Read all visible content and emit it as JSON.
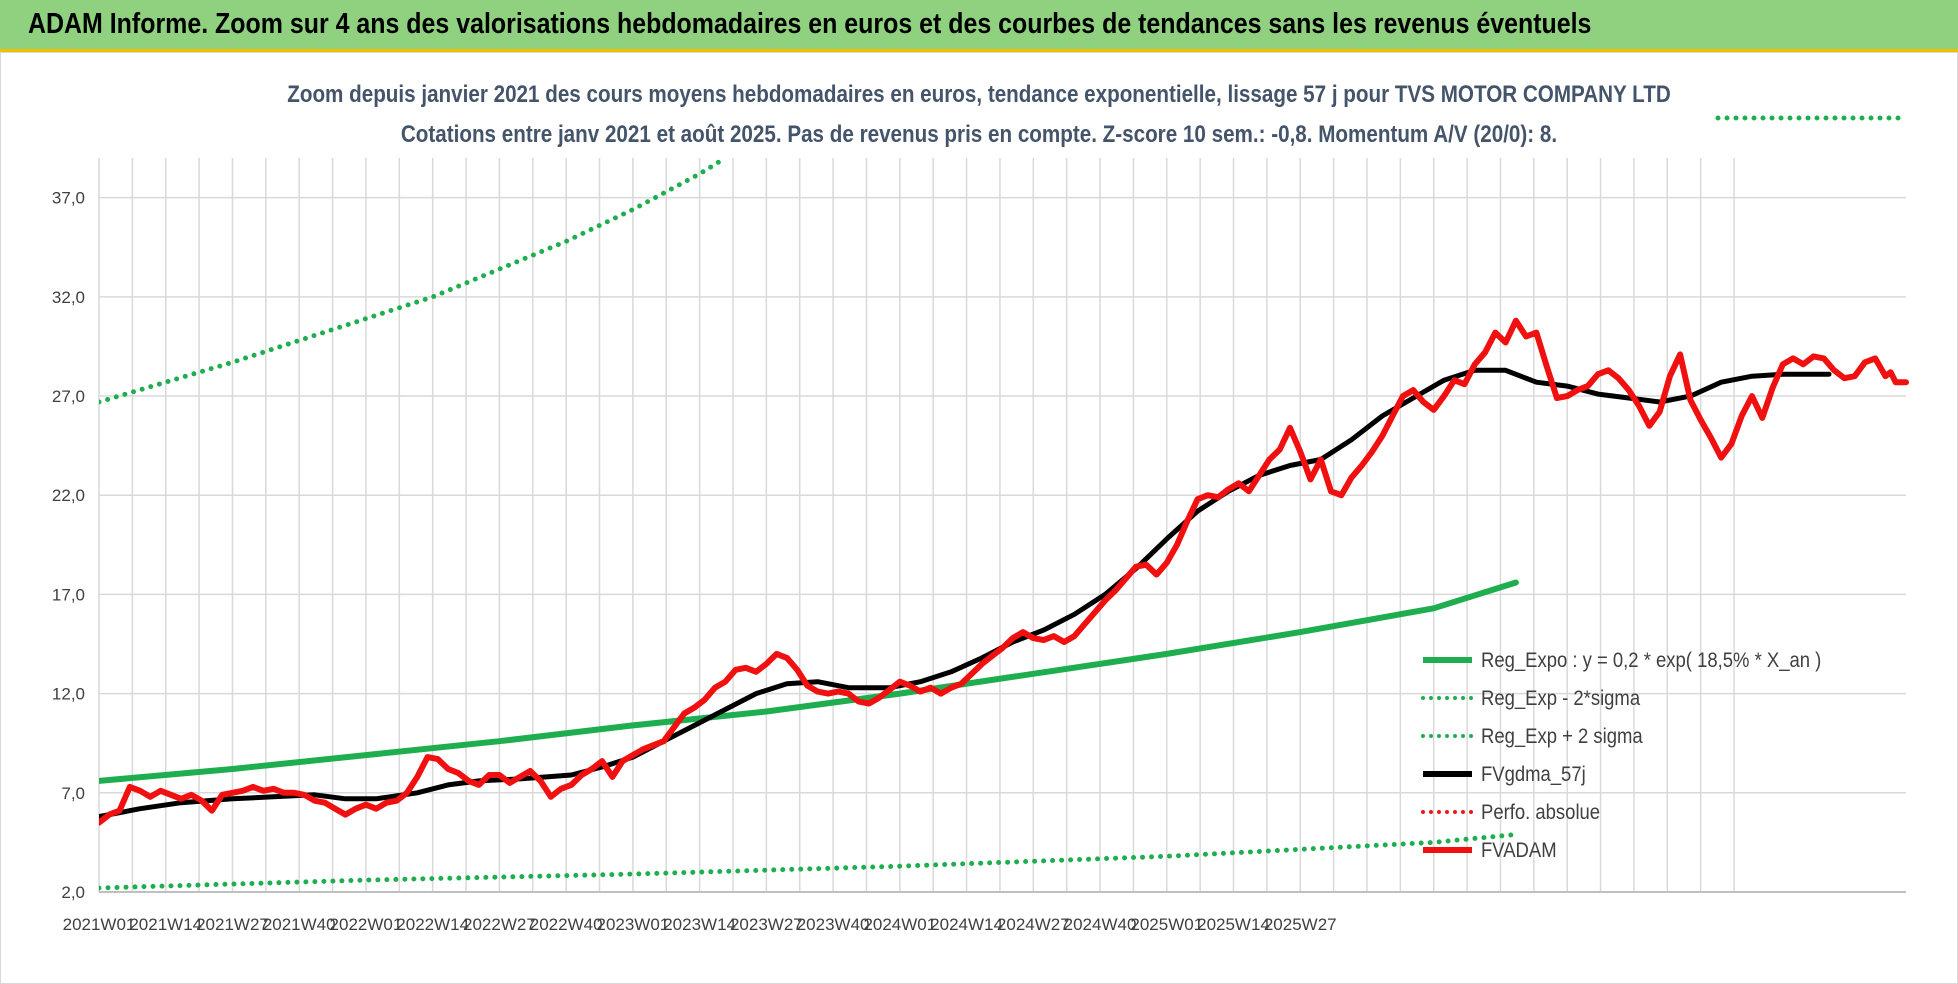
{
  "banner": {
    "title": "ADAM Informe. Zoom sur 4 ans des valorisations hebdomadaires en euros et des courbes de tendances sans les revenus éventuels"
  },
  "chart_data": {
    "type": "line",
    "title": "Zoom depuis janvier 2021 des cours moyens hebdomadaires en euros, tendance exponentielle, lissage 57 j pour TVS MOTOR COMPANY LTD",
    "subtitle": "Cotations entre janv 2021 et août 2025.  Pas de revenus pris en compte. Z-score 10 sem.: -0,8. Momentum A/V (20/0): 8.",
    "xlabel": "",
    "ylabel": "",
    "ylim": [
      2,
      39
    ],
    "x_tick_labels": [
      "2021W01",
      "2021W14",
      "2021W27",
      "2021W40",
      "2022W01",
      "2022W14",
      "2022W27",
      "2022W40",
      "2023W01",
      "2023W14",
      "2023W27",
      "2023W40",
      "2024W01",
      "2024W14",
      "2024W27",
      "2024W40",
      "2025W01",
      "2025W14",
      "2025W27"
    ],
    "y_ticks": [
      2,
      7,
      12,
      17,
      22,
      27,
      32,
      37
    ],
    "y_tick_labels": [
      "2,0",
      "7,0",
      "12,0",
      "17,0",
      "22,0",
      "27,0",
      "32,0",
      "37,0"
    ],
    "grid": true,
    "legend_position": "bottom-right",
    "series": [
      {
        "name": "Reg_Expo : y = 0,2 * exp( 18,5% *  X_an )",
        "color": "#1fae4f",
        "style": "solid",
        "points": [
          [
            0,
            7.6
          ],
          [
            26,
            8.2
          ],
          [
            52,
            8.9
          ],
          [
            78,
            9.6
          ],
          [
            104,
            10.4
          ],
          [
            130,
            11.1
          ],
          [
            156,
            12.0
          ],
          [
            182,
            13.0
          ],
          [
            208,
            14.0
          ],
          [
            234,
            15.1
          ],
          [
            260,
            16.3
          ],
          [
            276,
            17.6
          ]
        ]
      },
      {
        "name": "Reg_Exp - 2*sigma",
        "color": "#1fae4f",
        "style": "dotted",
        "points": [
          [
            0,
            2.2
          ],
          [
            52,
            2.6
          ],
          [
            104,
            2.9
          ],
          [
            156,
            3.3
          ],
          [
            208,
            3.8
          ],
          [
            260,
            4.5
          ],
          [
            276,
            4.9
          ]
        ]
      },
      {
        "name": "Reg_Exp + 2 sigma",
        "color": "#1fae4f",
        "style": "dotted",
        "points": [
          [
            0,
            26.7
          ],
          [
            13,
            27.7
          ],
          [
            26,
            28.7
          ],
          [
            39,
            29.8
          ],
          [
            52,
            30.9
          ],
          [
            65,
            32.0
          ],
          [
            78,
            33.4
          ],
          [
            91,
            34.8
          ],
          [
            104,
            36.4
          ],
          [
            117,
            38.2
          ],
          [
            122,
            39.0
          ]
        ]
      },
      {
        "name": "FVgdma_57j",
        "color": "#000000",
        "style": "solid",
        "points": [
          [
            0,
            5.8
          ],
          [
            8,
            6.2
          ],
          [
            16,
            6.5
          ],
          [
            26,
            6.7
          ],
          [
            34,
            6.8
          ],
          [
            42,
            6.9
          ],
          [
            48,
            6.7
          ],
          [
            54,
            6.7
          ],
          [
            62,
            7.0
          ],
          [
            68,
            7.4
          ],
          [
            74,
            7.6
          ],
          [
            82,
            7.7
          ],
          [
            92,
            7.9
          ],
          [
            98,
            8.3
          ],
          [
            104,
            8.8
          ],
          [
            110,
            9.6
          ],
          [
            116,
            10.4
          ],
          [
            122,
            11.2
          ],
          [
            128,
            12.0
          ],
          [
            134,
            12.5
          ],
          [
            140,
            12.6
          ],
          [
            146,
            12.3
          ],
          [
            154,
            12.3
          ],
          [
            160,
            12.6
          ],
          [
            166,
            13.1
          ],
          [
            172,
            13.8
          ],
          [
            178,
            14.6
          ],
          [
            184,
            15.2
          ],
          [
            190,
            16.0
          ],
          [
            196,
            17.0
          ],
          [
            202,
            18.3
          ],
          [
            208,
            19.8
          ],
          [
            214,
            21.2
          ],
          [
            220,
            22.2
          ],
          [
            226,
            23.0
          ],
          [
            232,
            23.5
          ],
          [
            238,
            23.8
          ],
          [
            244,
            24.8
          ],
          [
            250,
            26.0
          ],
          [
            256,
            26.9
          ],
          [
            262,
            27.8
          ],
          [
            268,
            28.3
          ],
          [
            274,
            28.3
          ],
          [
            280,
            27.7
          ],
          [
            286,
            27.5
          ],
          [
            292,
            27.1
          ],
          [
            298,
            26.9
          ],
          [
            304,
            26.7
          ],
          [
            310,
            27.0
          ],
          [
            316,
            27.7
          ],
          [
            322,
            28.0
          ],
          [
            328,
            28.1
          ],
          [
            334,
            28.1
          ],
          [
            337,
            28.1
          ]
        ]
      },
      {
        "name": "Perfo. absolue",
        "color": "#e01b1b",
        "style": "dotted",
        "points": []
      },
      {
        "name": "FVADAM",
        "color": "#f01010",
        "style": "solid",
        "points": [
          [
            0,
            5.5
          ],
          [
            2,
            5.9
          ],
          [
            4,
            6.1
          ],
          [
            6,
            7.3
          ],
          [
            8,
            7.1
          ],
          [
            10,
            6.8
          ],
          [
            12,
            7.1
          ],
          [
            14,
            6.9
          ],
          [
            16,
            6.7
          ],
          [
            18,
            6.9
          ],
          [
            20,
            6.6
          ],
          [
            22,
            6.1
          ],
          [
            24,
            6.9
          ],
          [
            26,
            7.0
          ],
          [
            28,
            7.1
          ],
          [
            30,
            7.3
          ],
          [
            32,
            7.1
          ],
          [
            34,
            7.2
          ],
          [
            36,
            7.0
          ],
          [
            38,
            7.0
          ],
          [
            40,
            6.9
          ],
          [
            42,
            6.6
          ],
          [
            44,
            6.5
          ],
          [
            46,
            6.2
          ],
          [
            48,
            5.9
          ],
          [
            50,
            6.2
          ],
          [
            52,
            6.4
          ],
          [
            54,
            6.2
          ],
          [
            56,
            6.5
          ],
          [
            58,
            6.6
          ],
          [
            60,
            7.0
          ],
          [
            62,
            7.8
          ],
          [
            64,
            8.8
          ],
          [
            66,
            8.7
          ],
          [
            68,
            8.2
          ],
          [
            70,
            8.0
          ],
          [
            72,
            7.6
          ],
          [
            74,
            7.4
          ],
          [
            76,
            7.9
          ],
          [
            78,
            7.9
          ],
          [
            80,
            7.5
          ],
          [
            82,
            7.8
          ],
          [
            84,
            8.1
          ],
          [
            86,
            7.6
          ],
          [
            88,
            6.8
          ],
          [
            90,
            7.2
          ],
          [
            92,
            7.4
          ],
          [
            94,
            7.9
          ],
          [
            96,
            8.2
          ],
          [
            98,
            8.6
          ],
          [
            100,
            7.8
          ],
          [
            102,
            8.6
          ],
          [
            104,
            8.9
          ],
          [
            106,
            9.2
          ],
          [
            108,
            9.4
          ],
          [
            110,
            9.6
          ],
          [
            112,
            10.3
          ],
          [
            114,
            11.0
          ],
          [
            116,
            11.3
          ],
          [
            118,
            11.7
          ],
          [
            120,
            12.3
          ],
          [
            122,
            12.6
          ],
          [
            124,
            13.2
          ],
          [
            126,
            13.3
          ],
          [
            128,
            13.1
          ],
          [
            130,
            13.5
          ],
          [
            132,
            14.0
          ],
          [
            134,
            13.8
          ],
          [
            136,
            13.2
          ],
          [
            138,
            12.4
          ],
          [
            140,
            12.1
          ],
          [
            142,
            12.0
          ],
          [
            144,
            12.1
          ],
          [
            146,
            12.0
          ],
          [
            148,
            11.6
          ],
          [
            150,
            11.5
          ],
          [
            152,
            11.8
          ],
          [
            154,
            12.2
          ],
          [
            156,
            12.6
          ],
          [
            158,
            12.4
          ],
          [
            160,
            12.1
          ],
          [
            162,
            12.3
          ],
          [
            164,
            12.0
          ],
          [
            166,
            12.3
          ],
          [
            168,
            12.5
          ],
          [
            170,
            13.0
          ],
          [
            172,
            13.5
          ],
          [
            174,
            13.9
          ],
          [
            176,
            14.3
          ],
          [
            178,
            14.8
          ],
          [
            180,
            15.1
          ],
          [
            182,
            14.8
          ],
          [
            184,
            14.7
          ],
          [
            186,
            14.9
          ],
          [
            188,
            14.6
          ],
          [
            190,
            14.9
          ],
          [
            192,
            15.5
          ],
          [
            194,
            16.1
          ],
          [
            196,
            16.7
          ],
          [
            198,
            17.2
          ],
          [
            200,
            17.8
          ],
          [
            202,
            18.4
          ],
          [
            204,
            18.5
          ],
          [
            206,
            18.0
          ],
          [
            208,
            18.6
          ],
          [
            210,
            19.5
          ],
          [
            212,
            20.7
          ],
          [
            214,
            21.8
          ],
          [
            216,
            22.0
          ],
          [
            218,
            21.9
          ],
          [
            220,
            22.3
          ],
          [
            222,
            22.6
          ],
          [
            224,
            22.2
          ],
          [
            226,
            23.0
          ],
          [
            228,
            23.8
          ],
          [
            230,
            24.3
          ],
          [
            232,
            25.4
          ],
          [
            234,
            24.2
          ],
          [
            236,
            22.8
          ],
          [
            238,
            23.8
          ],
          [
            240,
            22.2
          ],
          [
            242,
            22.0
          ],
          [
            244,
            22.9
          ],
          [
            246,
            23.5
          ],
          [
            248,
            24.2
          ],
          [
            250,
            25.0
          ],
          [
            252,
            26.0
          ],
          [
            254,
            27.0
          ],
          [
            256,
            27.3
          ],
          [
            258,
            26.7
          ],
          [
            260,
            26.3
          ],
          [
            262,
            27.0
          ],
          [
            264,
            27.8
          ],
          [
            266,
            27.6
          ],
          [
            268,
            28.6
          ],
          [
            270,
            29.2
          ],
          [
            272,
            30.2
          ],
          [
            274,
            29.7
          ],
          [
            276,
            30.8
          ],
          [
            278,
            30.0
          ],
          [
            280,
            30.2
          ],
          [
            282,
            28.5
          ],
          [
            284,
            26.9
          ],
          [
            286,
            27.0
          ],
          [
            288,
            27.3
          ],
          [
            290,
            27.5
          ],
          [
            292,
            28.1
          ],
          [
            294,
            28.3
          ],
          [
            296,
            27.9
          ],
          [
            298,
            27.3
          ],
          [
            300,
            26.5
          ],
          [
            302,
            25.5
          ],
          [
            304,
            26.2
          ],
          [
            306,
            28.0
          ],
          [
            308,
            29.1
          ],
          [
            310,
            26.8
          ],
          [
            312,
            25.8
          ],
          [
            314,
            24.9
          ],
          [
            316,
            23.9
          ],
          [
            318,
            24.6
          ],
          [
            320,
            26.0
          ],
          [
            322,
            27.0
          ],
          [
            324,
            25.9
          ],
          [
            326,
            27.4
          ],
          [
            328,
            28.6
          ],
          [
            330,
            28.9
          ],
          [
            332,
            28.6
          ],
          [
            334,
            29.0
          ],
          [
            336,
            28.9
          ],
          [
            338,
            28.3
          ],
          [
            340,
            27.9
          ],
          [
            342,
            28.0
          ],
          [
            344,
            28.7
          ],
          [
            346,
            28.9
          ],
          [
            348,
            28.0
          ],
          [
            349,
            28.2
          ],
          [
            350,
            27.7
          ],
          [
            352,
            27.7
          ]
        ]
      }
    ]
  }
}
